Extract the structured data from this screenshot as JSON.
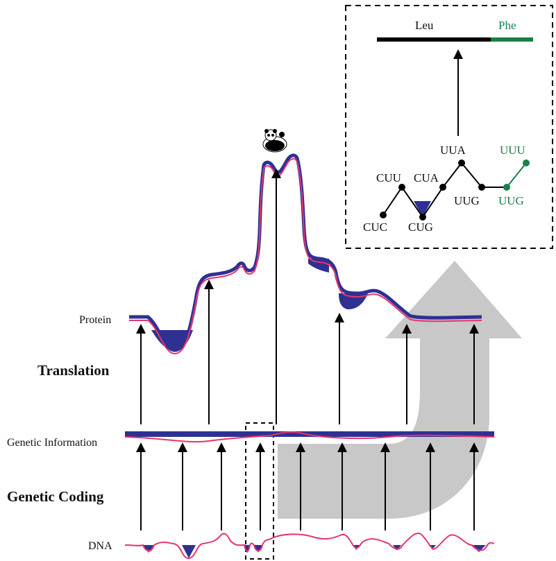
{
  "labels": {
    "protein": "Protein",
    "translation": "Translation",
    "genetic_information": "Genetic Information",
    "genetic_coding": "Genetic Coding",
    "dna": "DNA"
  },
  "inset": {
    "amino_acids": [
      "Leu",
      "Phe"
    ],
    "codons_black": [
      "CUC",
      "CUU",
      "CUG",
      "CUA",
      "UUA",
      "UUG"
    ],
    "codons_green": [
      "UUU",
      "UUG"
    ]
  },
  "colors": {
    "surface_fill": "#2e3192",
    "surface_edge": "#e8336d",
    "green": "#1a7f4a",
    "big_arrow": "#c8c8c8"
  },
  "icons": [
    "panda-icon"
  ]
}
